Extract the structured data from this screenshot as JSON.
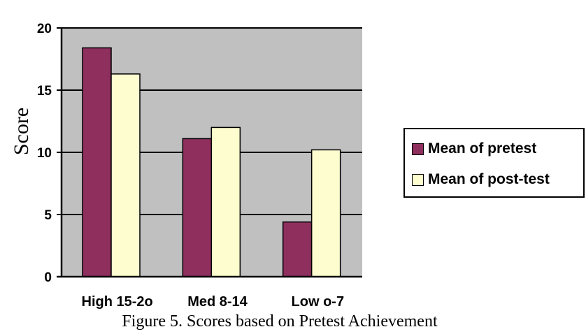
{
  "chart_data": {
    "type": "bar",
    "categories": [
      "High 15-2o",
      "Med 8-14",
      "Low o-7"
    ],
    "series": [
      {
        "name": "Mean of pretest",
        "values": [
          18.4,
          11.1,
          4.4
        ],
        "color": "#8e2f5e"
      },
      {
        "name": "Mean of post-test",
        "values": [
          16.3,
          12.0,
          10.2
        ],
        "color": "#fdfdd0"
      }
    ],
    "ylabel": "Score",
    "ylim": [
      0,
      20
    ],
    "yticks": [
      "0",
      "5",
      "10",
      "15",
      "20"
    ],
    "grid": true,
    "plot_background": "#c0c0c0",
    "legend_position": "right"
  },
  "caption": "Figure 5. Scores based on Pretest Achievement"
}
